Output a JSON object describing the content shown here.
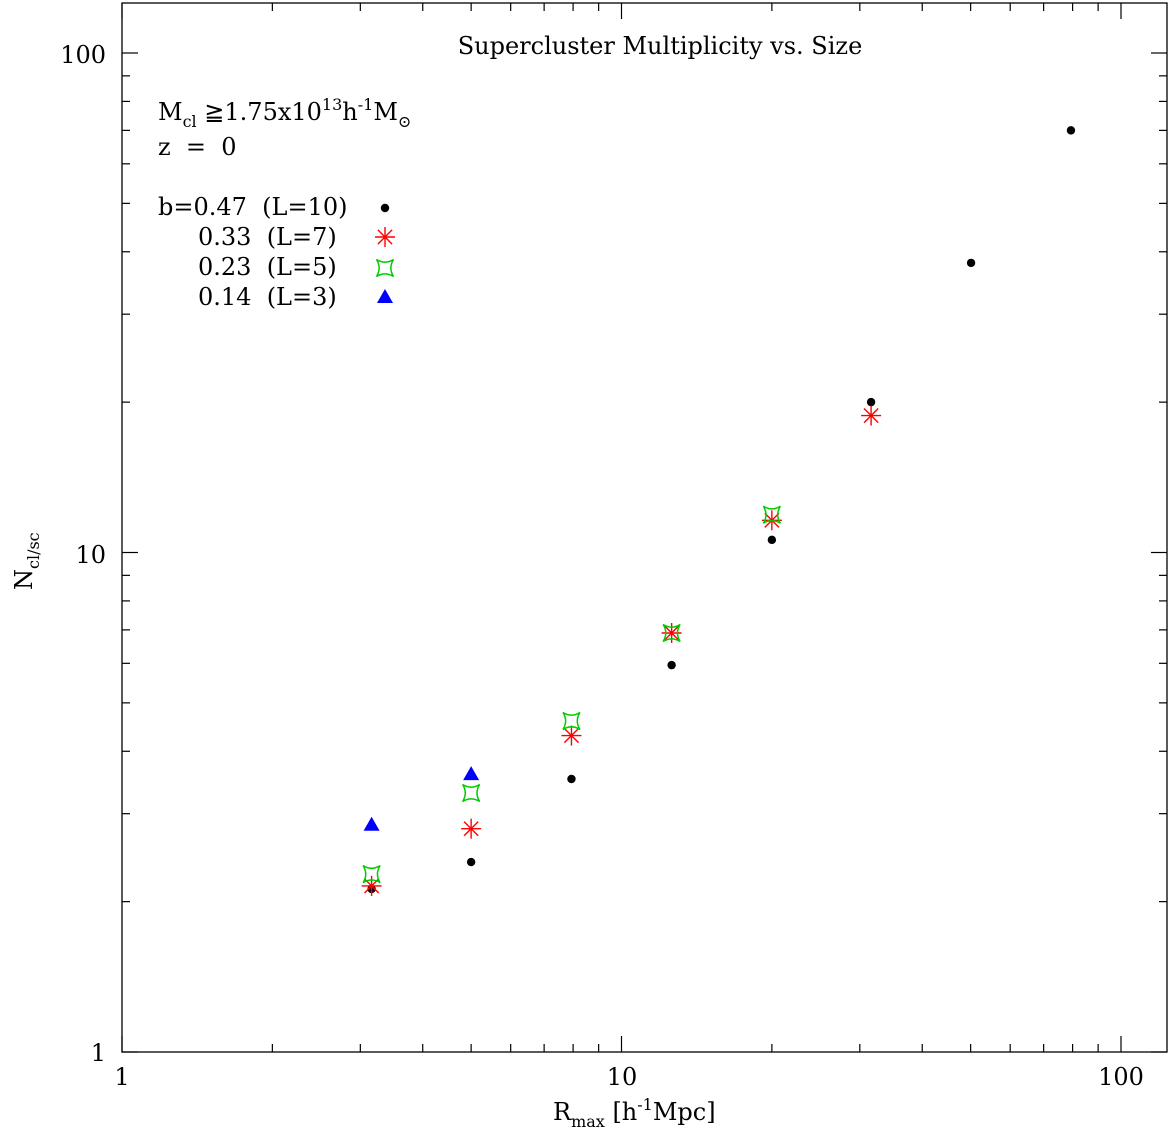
{
  "chart_data": {
    "type": "scatter",
    "title": "Supercluster Multiplicity vs. Size",
    "xlabel": {
      "main": "R",
      "sub": "max",
      "rest_open": " [h",
      "sup": "-1",
      "rest_close": "Mpc]"
    },
    "ylabel": {
      "main": "N",
      "sub": "cl/sc"
    },
    "x_scale": "log",
    "y_scale": "log",
    "xlim": [
      1,
      125
    ],
    "ylim": [
      1,
      125
    ],
    "x_tick_labels": [
      "1",
      "10",
      "100"
    ],
    "y_tick_labels": [
      "1",
      "10",
      "100"
    ],
    "annotations": {
      "mass": {
        "main": "M",
        "sub": "cl",
        "mid": " ≧1.75x10",
        "sup13": "13",
        "h": "h",
        "supm1": "-1",
        "M": "M",
        "sun_sub": "⊙"
      },
      "redshift": "z  =  0"
    },
    "series": [
      {
        "name": "b=0.47  (L=10)",
        "marker": "circle",
        "color": "#000000",
        "x": [
          3.16,
          5.0,
          7.94,
          12.6,
          20.0,
          31.6,
          50.1,
          79.4
        ],
        "y": [
          2.12,
          2.4,
          3.52,
          5.95,
          10.6,
          20.0,
          38.0,
          70.0
        ]
      },
      {
        "name": "0.33  (L=7)",
        "marker": "asterisk",
        "color": "#ff0000",
        "x": [
          3.16,
          5.0,
          7.94,
          12.6,
          20.0,
          31.6
        ],
        "y": [
          2.15,
          2.8,
          4.3,
          6.9,
          11.6,
          18.8
        ]
      },
      {
        "name": "0.23  (L=5)",
        "marker": "star4",
        "color": "#00cc00",
        "x": [
          3.16,
          5.0,
          7.94,
          12.6,
          20.0
        ],
        "y": [
          2.27,
          3.3,
          4.6,
          6.9,
          11.9
        ]
      },
      {
        "name": "0.14  (L=3)",
        "marker": "triangle",
        "color": "#0000ff",
        "x": [
          3.16,
          5.0
        ],
        "y": [
          2.85,
          3.6
        ]
      }
    ]
  }
}
